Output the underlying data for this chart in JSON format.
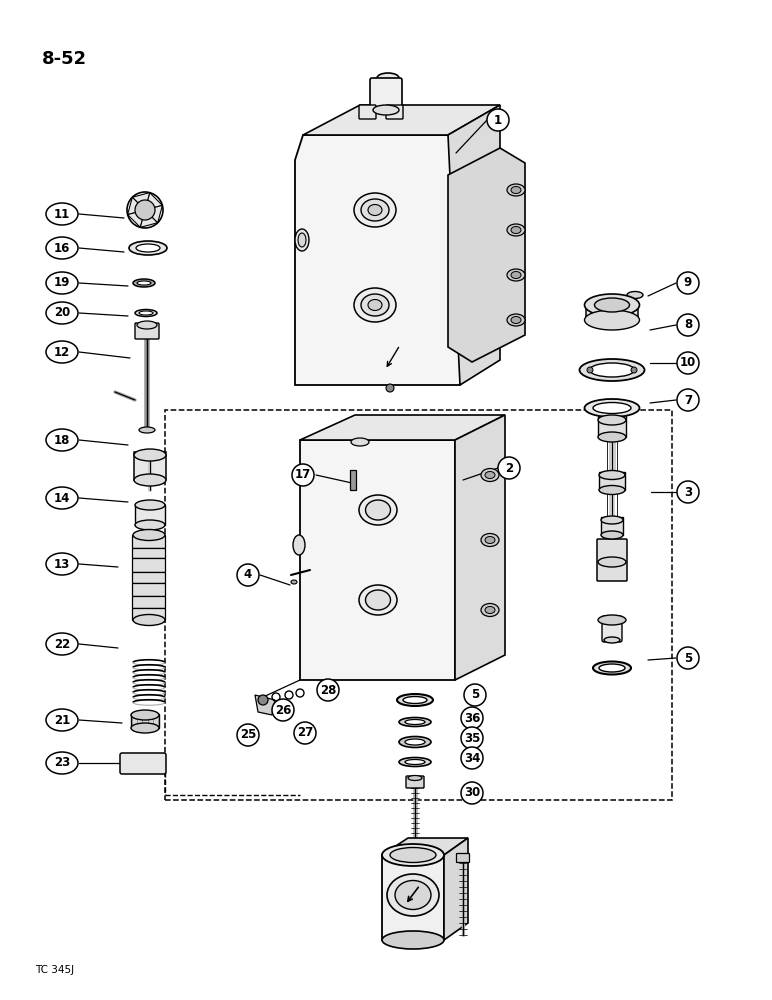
{
  "page_label": "8-52",
  "footer": "TC 345J",
  "background": "#ffffff",
  "lc": "#000000",
  "fig_width": 7.72,
  "fig_height": 10.0,
  "dpi": 100
}
